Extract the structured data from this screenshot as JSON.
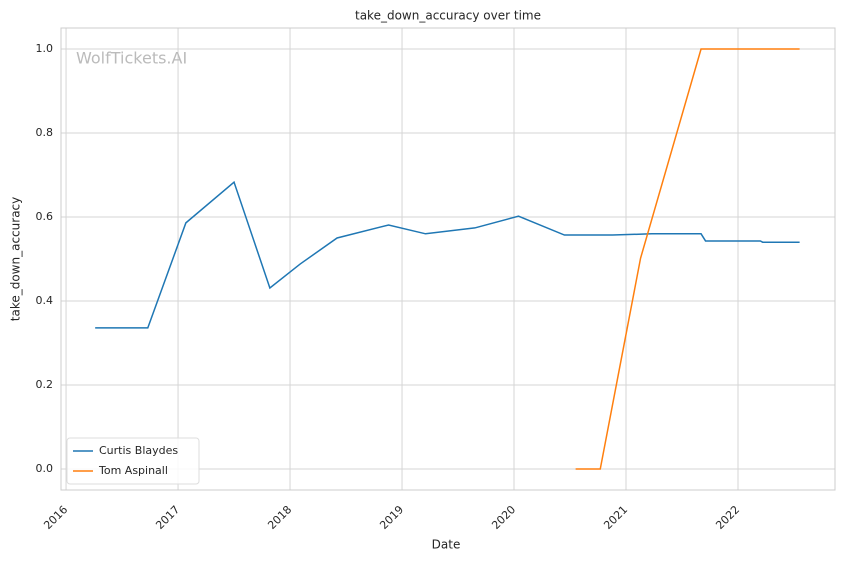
{
  "chart_data": {
    "type": "line",
    "title": "take_down_accuracy over time",
    "x_label": "Date",
    "y_label": "take_down_accuracy",
    "watermark": "WolfTickets.AI",
    "xlim": [
      2015.955,
      2022.866
    ],
    "xticks": [
      2016,
      2017,
      2018,
      2019,
      2020,
      2021,
      2022
    ],
    "ylim": [
      -0.05,
      1.05
    ],
    "yticks": [
      {
        "value": 0,
        "label": "0.0"
      },
      0.2,
      0.4,
      0.6,
      0.8,
      {
        "value": 1,
        "label": "1.0"
      }
    ],
    "grid": true,
    "legend": "lower left",
    "series": [
      {
        "name": "Curtis Blaydes",
        "color": "#1f77b4",
        "x": [
          2016.26,
          2016.73,
          2017.07,
          2017.5,
          2017.82,
          2018.09,
          2018.42,
          2018.88,
          2019.21,
          2019.65,
          2020.04,
          2020.45,
          2020.88,
          2021.23,
          2021.67,
          2021.71,
          2022.2,
          2022.22,
          2022.55
        ],
        "values": [
          0.336,
          0.336,
          0.586,
          0.683,
          0.431,
          0.488,
          0.55,
          0.581,
          0.56,
          0.574,
          0.602,
          0.557,
          0.557,
          0.56,
          0.56,
          0.543,
          0.543,
          0.54,
          0.54
        ]
      },
      {
        "name": "Tom Aspinall",
        "color": "#ff7f0e",
        "x": [
          2020.55,
          2020.77,
          2021.13,
          2021.67,
          2022.55
        ],
        "values": [
          0,
          0,
          0.502,
          1,
          1
        ]
      }
    ]
  }
}
